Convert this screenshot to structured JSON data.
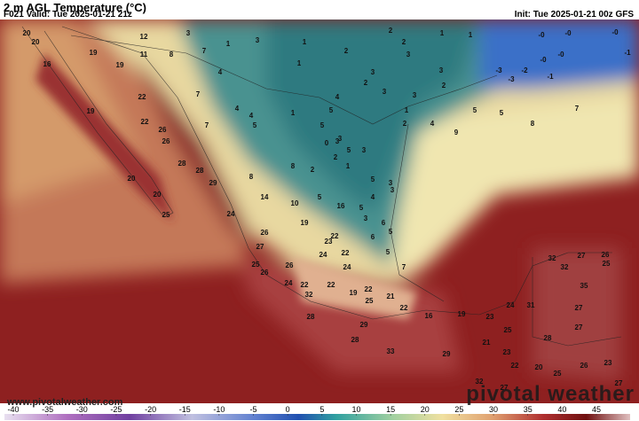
{
  "header": {
    "title": "2 m AGL Temperature (°C)",
    "valid": "F021 Valid: Tue 2025-01-21 21z",
    "init": "Init: Tue 2025-01-21 00z GFS"
  },
  "footer": {
    "url": "www.pivotalweather.com",
    "brand": "pivotal weather"
  },
  "colorbar": {
    "ticks": [
      -40,
      -35,
      -30,
      -25,
      -20,
      -15,
      -10,
      -5,
      0,
      5,
      10,
      15,
      20,
      25,
      30,
      35,
      40,
      45
    ]
  },
  "map": {
    "labels": [
      "20",
      "20",
      "16",
      "19",
      "19",
      "19",
      "22",
      "22",
      "26",
      "26",
      "28",
      "28",
      "29",
      "20",
      "20",
      "25",
      "24",
      "27",
      "25",
      "26",
      "26",
      "24",
      "32",
      "28",
      "22",
      "22",
      "23",
      "22",
      "24",
      "22",
      "24",
      "19",
      "22",
      "25",
      "21",
      "22",
      "16",
      "29",
      "28",
      "33",
      "29",
      "19",
      "23",
      "24",
      "31",
      "21",
      "25",
      "23",
      "22",
      "20",
      "25",
      "26",
      "23",
      "32",
      "27",
      "26",
      "25",
      "35",
      "32",
      "27",
      "27",
      "28",
      "32",
      "27",
      "27",
      "12",
      "11",
      "8",
      "3",
      "7",
      "1",
      "3",
      "4",
      "7",
      "7",
      "4",
      "4",
      "5",
      "1",
      "1",
      "1",
      "2",
      "2",
      "3",
      "3",
      "3",
      "1",
      "2",
      "4",
      "2",
      "2",
      "3",
      "1",
      "3",
      "2",
      "5",
      "5",
      "8",
      "7",
      "9",
      "1",
      "-0",
      "-0",
      "-0",
      "-0",
      "-0",
      "-1",
      "-2",
      "-3",
      "-3",
      "-1",
      "4",
      "5",
      "5",
      "3",
      "3",
      "5",
      "3",
      "0",
      "3",
      "1",
      "2",
      "5",
      "2",
      "8",
      "8",
      "14",
      "10",
      "5",
      "16",
      "19",
      "5",
      "6",
      "6",
      "5",
      "7",
      "3",
      "4",
      "5",
      "3",
      "26"
    ]
  }
}
